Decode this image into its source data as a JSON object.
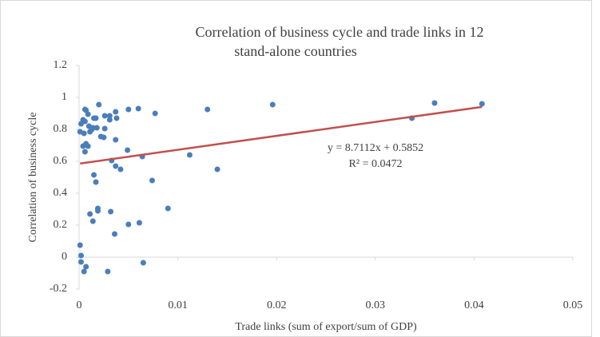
{
  "chart_data": {
    "type": "scatter",
    "title": [
      "Correlation of business cycle and trade links in 12",
      "stand-alone countries"
    ],
    "x_label": "Trade links (sum of export/sum of GDP)",
    "y_label": "Correlation of business cycle",
    "xlim": [
      0,
      0.05
    ],
    "xticks": [
      0,
      0.01,
      0.02,
      0.03,
      0.04,
      0.05
    ],
    "ylim": [
      -0.2,
      1.2
    ],
    "yticks": [
      -0.2,
      0,
      0.2,
      0.4,
      0.6,
      0.8,
      1,
      1.2
    ],
    "color": "#4a7ebb",
    "x": [
      0.0001,
      0.0002,
      0.0004,
      0.0006,
      0.0007,
      0.0009,
      0.0006,
      0.001,
      0.0011,
      0.0013,
      0.0015,
      0.0017,
      0.0018,
      0.0014,
      0.0005,
      0.0007,
      0.0006,
      0.0009,
      0.0004,
      0.002,
      0.0026,
      0.0031,
      0.0031,
      0.0026,
      0.0022,
      0.0025,
      0.0037,
      0.0038,
      0.005,
      0.006,
      0.0077,
      0.0037,
      0.0049,
      0.0033,
      0.0037,
      0.0042,
      0.0064,
      0.0015,
      0.0017,
      0.0074,
      0.0112,
      0.014,
      0.013,
      0.0196,
      0.0337,
      0.036,
      0.0408,
      0.0019,
      0.0019,
      0.0011,
      0.0032,
      0.0014,
      0.009,
      0.0061,
      0.005,
      0.0036,
      0.0001,
      0.0002,
      0.0002,
      0.0007,
      0.0005,
      0.0029,
      0.0065
    ],
    "values": [
      0.785,
      0.835,
      0.86,
      0.925,
      0.92,
      0.895,
      0.85,
      0.82,
      0.785,
      0.8,
      0.87,
      0.87,
      0.81,
      0.81,
      0.775,
      0.71,
      0.66,
      0.695,
      0.695,
      0.955,
      0.885,
      0.885,
      0.86,
      0.805,
      0.755,
      0.75,
      0.91,
      0.87,
      0.925,
      0.93,
      0.9,
      0.735,
      0.67,
      0.605,
      0.57,
      0.55,
      0.63,
      0.515,
      0.47,
      0.48,
      0.64,
      0.55,
      0.925,
      0.955,
      0.87,
      0.965,
      0.96,
      0.305,
      0.29,
      0.27,
      0.285,
      0.225,
      0.305,
      0.215,
      0.205,
      0.145,
      0.075,
      0.01,
      -0.03,
      -0.06,
      -0.09,
      -0.09,
      -0.035
    ],
    "trendline": {
      "equation": "y = 8.7112x + 0.5852",
      "r_squared": "R² = 0.0472",
      "slope": 8.7112,
      "intercept": 0.5852,
      "color": "#c0504d"
    }
  }
}
